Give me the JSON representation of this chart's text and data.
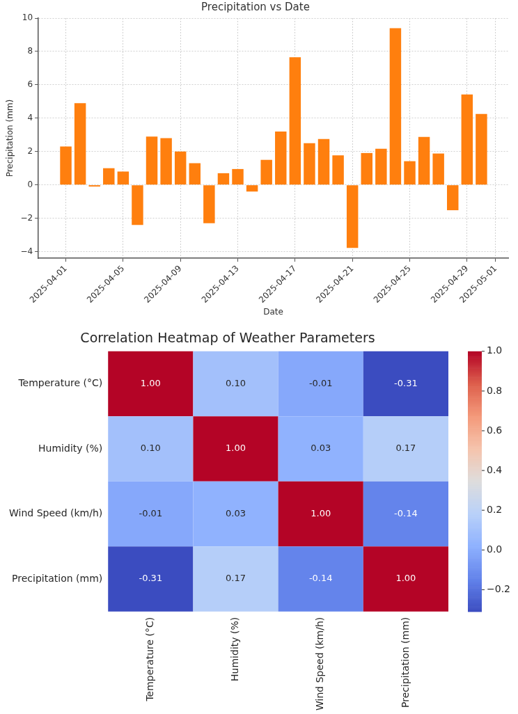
{
  "chart_data": [
    {
      "type": "bar",
      "title": "Precipitation vs Date",
      "xlabel": "Date",
      "ylabel": "Precipitation (mm)",
      "color": "#ff7f0e",
      "x": [
        "2025-04-01",
        "2025-04-02",
        "2025-04-03",
        "2025-04-04",
        "2025-04-05",
        "2025-04-06",
        "2025-04-07",
        "2025-04-08",
        "2025-04-09",
        "2025-04-10",
        "2025-04-11",
        "2025-04-12",
        "2025-04-13",
        "2025-04-14",
        "2025-04-15",
        "2025-04-16",
        "2025-04-17",
        "2025-04-18",
        "2025-04-19",
        "2025-04-20",
        "2025-04-21",
        "2025-04-22",
        "2025-04-23",
        "2025-04-24",
        "2025-04-25",
        "2025-04-26",
        "2025-04-27",
        "2025-04-28",
        "2025-04-29",
        "2025-04-30"
      ],
      "values": [
        2.3,
        4.9,
        -0.1,
        1.0,
        0.8,
        -2.4,
        2.9,
        2.8,
        2.0,
        1.3,
        -2.3,
        0.7,
        0.95,
        -0.4,
        1.5,
        3.2,
        7.65,
        2.5,
        2.75,
        1.77,
        -3.78,
        1.91,
        2.17,
        9.39,
        1.42,
        2.88,
        1.88,
        -1.52,
        5.42,
        4.25
      ],
      "xlim": [
        "2025-03-30T02:00",
        "2025-05-01T21:00"
      ],
      "xticks": [
        "2025-04-01",
        "2025-04-05",
        "2025-04-09",
        "2025-04-13",
        "2025-04-17",
        "2025-04-21",
        "2025-04-25",
        "2025-04-29",
        "2025-05-01"
      ],
      "ylim": [
        -4.4,
        10
      ],
      "yticks": [
        {
          "value": -4,
          "label": "−4"
        },
        {
          "value": -2,
          "label": "−2"
        },
        0,
        2,
        4,
        6,
        8,
        10
      ],
      "grid": true
    },
    {
      "type": "heatmap",
      "title": "Correlation Heatmap of Weather Parameters",
      "categories": [
        "Temperature (°C)",
        "Humidity (%)",
        "Wind Speed (km/h)",
        "Precipitation (mm)"
      ],
      "y_categories": [
        "Temperature (°C)",
        "Humidity (%)",
        "Wind Speed (km/h)",
        "Precipitation (mm)"
      ],
      "cells": [
        [
          1.0,
          0.1,
          -0.01,
          -0.31
        ],
        [
          0.1,
          1.0,
          0.03,
          0.17
        ],
        [
          -0.01,
          0.03,
          1.0,
          -0.14
        ],
        [
          -0.31,
          0.17,
          -0.14,
          1.0
        ]
      ],
      "cell_labels": [
        [
          "1.00",
          "0.10",
          "-0.01",
          "-0.31"
        ],
        [
          "0.10",
          "1.00",
          "0.03",
          "0.17"
        ],
        [
          "-0.01",
          "0.03",
          "1.00",
          "-0.14"
        ],
        [
          "-0.31",
          "0.17",
          "-0.14",
          "1.00"
        ]
      ],
      "clim": [
        -0.31,
        1.0
      ],
      "cticks": [
        {
          "value": -0.2,
          "label": "−0.2"
        },
        {
          "value": 0,
          "label": "0.0"
        },
        {
          "value": 0.2,
          "label": "0.2"
        },
        {
          "value": 0.4,
          "label": "0.4"
        },
        {
          "value": 0.6,
          "label": "0.6"
        },
        {
          "value": 0.8,
          "label": "0.8"
        },
        {
          "value": 1,
          "label": "1.0"
        }
      ]
    }
  ]
}
